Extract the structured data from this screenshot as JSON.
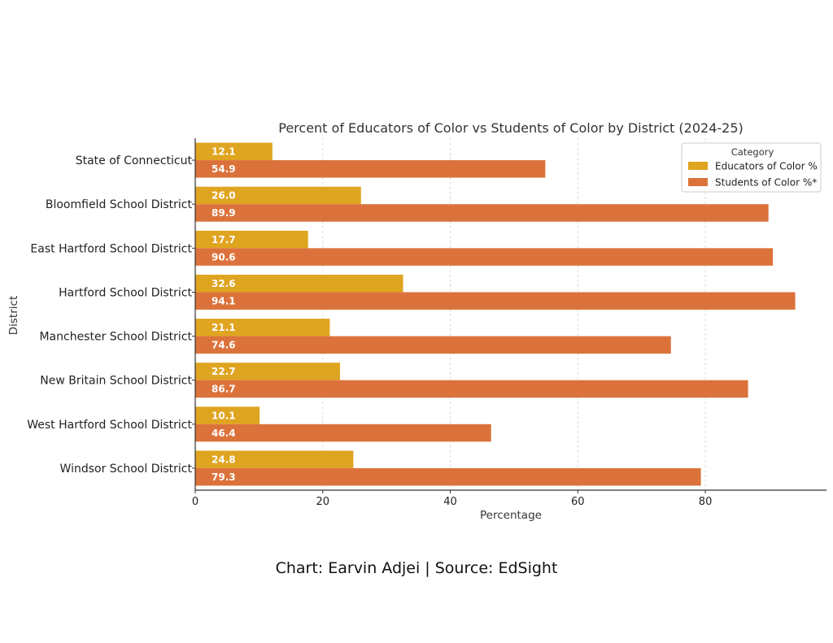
{
  "chart_data": {
    "type": "bar",
    "orientation": "horizontal",
    "title": "Percent of Educators of Color vs Students of Color by District (2024-25)",
    "xlabel": "Percentage",
    "ylabel": "District",
    "xlim": [
      0,
      99
    ],
    "xticks": [
      0,
      20,
      40,
      60,
      80
    ],
    "grid": "vertical-dashed",
    "categories": [
      "State of Connecticut",
      "Bloomfield School District",
      "East Hartford School District",
      "Hartford School District",
      "Manchester School District",
      "New Britain School District",
      "West Hartford School District",
      "Windsor School District"
    ],
    "series": [
      {
        "name": "Educators of Color %",
        "color": "#DFA420",
        "values": [
          12.1,
          26.0,
          17.7,
          32.6,
          21.1,
          22.7,
          10.1,
          24.8
        ]
      },
      {
        "name": "Students of Color %*",
        "color": "#DC723B",
        "values": [
          54.9,
          89.9,
          90.6,
          94.1,
          74.6,
          86.7,
          46.4,
          79.3
        ]
      }
    ],
    "legend": {
      "title": "Category",
      "placement": "top-right"
    }
  },
  "footer": {
    "credit": "Chart: Earvin Adjei | Source: EdSight"
  }
}
